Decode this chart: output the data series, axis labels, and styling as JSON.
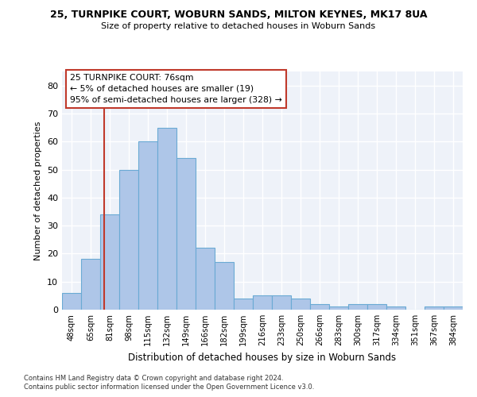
{
  "title1": "25, TURNPIKE COURT, WOBURN SANDS, MILTON KEYNES, MK17 8UA",
  "title2": "Size of property relative to detached houses in Woburn Sands",
  "xlabel": "Distribution of detached houses by size in Woburn Sands",
  "ylabel": "Number of detached properties",
  "categories": [
    "48sqm",
    "65sqm",
    "81sqm",
    "98sqm",
    "115sqm",
    "132sqm",
    "149sqm",
    "166sqm",
    "182sqm",
    "199sqm",
    "216sqm",
    "233sqm",
    "250sqm",
    "266sqm",
    "283sqm",
    "300sqm",
    "317sqm",
    "334sqm",
    "351sqm",
    "367sqm",
    "384sqm"
  ],
  "values": [
    6,
    18,
    34,
    50,
    60,
    65,
    54,
    22,
    17,
    4,
    5,
    5,
    4,
    2,
    1,
    2,
    2,
    1,
    0,
    1,
    1
  ],
  "bar_color": "#aec6e8",
  "bar_edge_color": "#6aaad4",
  "annotation_box_text": "25 TURNPIKE COURT: 76sqm\n← 5% of detached houses are smaller (19)\n95% of semi-detached houses are larger (328) →",
  "vline_color": "#c0392b",
  "ylim": [
    0,
    85
  ],
  "yticks": [
    0,
    10,
    20,
    30,
    40,
    50,
    60,
    70,
    80
  ],
  "bg_color": "#eef2f9",
  "grid_color": "#ffffff",
  "footnote1": "Contains HM Land Registry data © Crown copyright and database right 2024.",
  "footnote2": "Contains public sector information licensed under the Open Government Licence v3.0."
}
